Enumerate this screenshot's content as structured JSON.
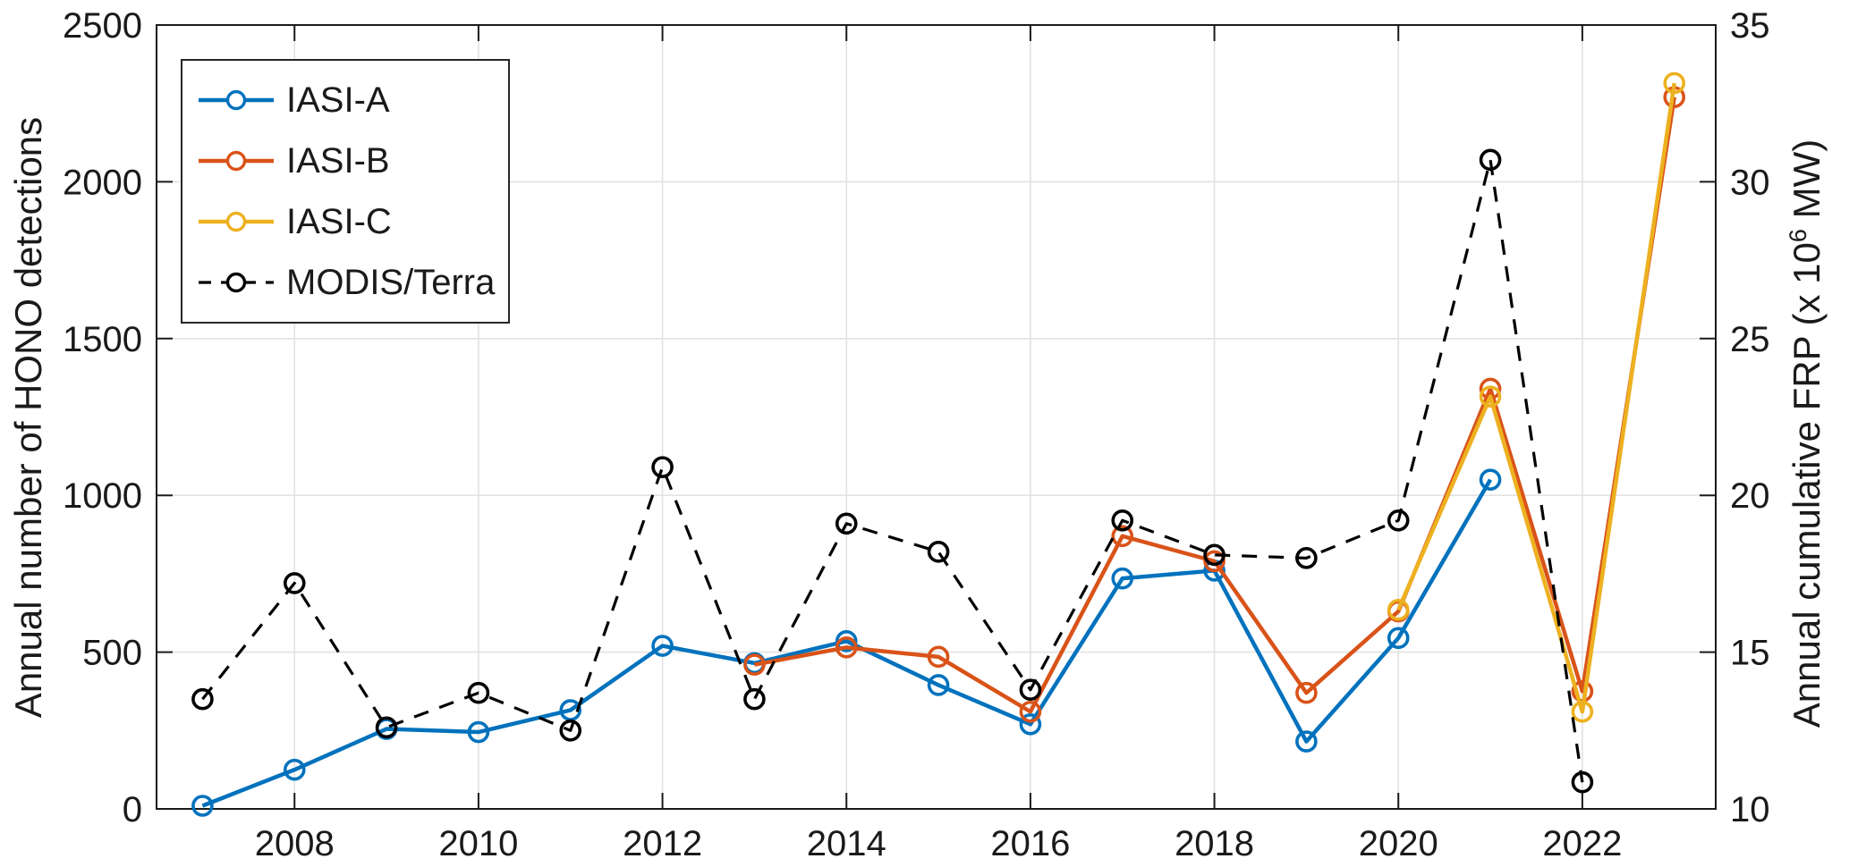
{
  "chart_data": {
    "type": "line",
    "title": "",
    "grid": true,
    "legend_position": "top-left",
    "x_axis": {
      "ticks": [
        2008,
        2010,
        2012,
        2014,
        2016,
        2018,
        2020,
        2022
      ],
      "range": [
        2006.5,
        2023.45
      ]
    },
    "left_axis": {
      "label": "Annual number of HONO detections",
      "ticks": [
        0,
        500,
        1000,
        1500,
        2000,
        2500
      ],
      "range": [
        0,
        2500
      ]
    },
    "right_axis": {
      "label": "Annual cumulative FRP (x 10⁶ MW)",
      "label_prefix": "Annual cumulative FRP (x 10",
      "label_sup": "6",
      "label_suffix": " MW)",
      "ticks": [
        10,
        15,
        20,
        25,
        30,
        35
      ],
      "range": [
        10,
        35
      ]
    },
    "series": [
      {
        "name": "IASI-A",
        "color": "#0072BD",
        "axis": "left",
        "style": "solid",
        "marker": "open-circle",
        "x": [
          2007,
          2008,
          2009,
          2010,
          2011,
          2012,
          2013,
          2014,
          2015,
          2016,
          2017,
          2018,
          2019,
          2020,
          2021
        ],
        "values": [
          10,
          125,
          255,
          245,
          315,
          520,
          465,
          535,
          395,
          270,
          735,
          760,
          215,
          545,
          1050
        ]
      },
      {
        "name": "IASI-B",
        "color": "#D95319",
        "axis": "left",
        "style": "solid",
        "marker": "open-circle",
        "x": [
          2013,
          2014,
          2015,
          2016,
          2017,
          2018,
          2019,
          2020,
          2021,
          2022,
          2023
        ],
        "values": [
          460,
          515,
          485,
          310,
          870,
          790,
          370,
          630,
          1340,
          375,
          2270
        ]
      },
      {
        "name": "IASI-C",
        "color": "#EDB120",
        "axis": "left",
        "style": "solid",
        "marker": "open-circle",
        "x": [
          2020,
          2021,
          2022,
          2023
        ],
        "values": [
          635,
          1315,
          310,
          2315
        ]
      },
      {
        "name": "MODIS/Terra",
        "color": "#000000",
        "axis": "right",
        "style": "dashed",
        "marker": "open-circle",
        "x": [
          2007,
          2008,
          2009,
          2010,
          2011,
          2012,
          2013,
          2014,
          2015,
          2016,
          2017,
          2018,
          2019,
          2020,
          2021,
          2022
        ],
        "values": [
          13.5,
          17.2,
          12.6,
          13.7,
          12.5,
          20.9,
          13.5,
          19.1,
          18.2,
          13.8,
          19.2,
          18.1,
          18.0,
          19.2,
          30.7,
          10.85
        ]
      }
    ]
  }
}
